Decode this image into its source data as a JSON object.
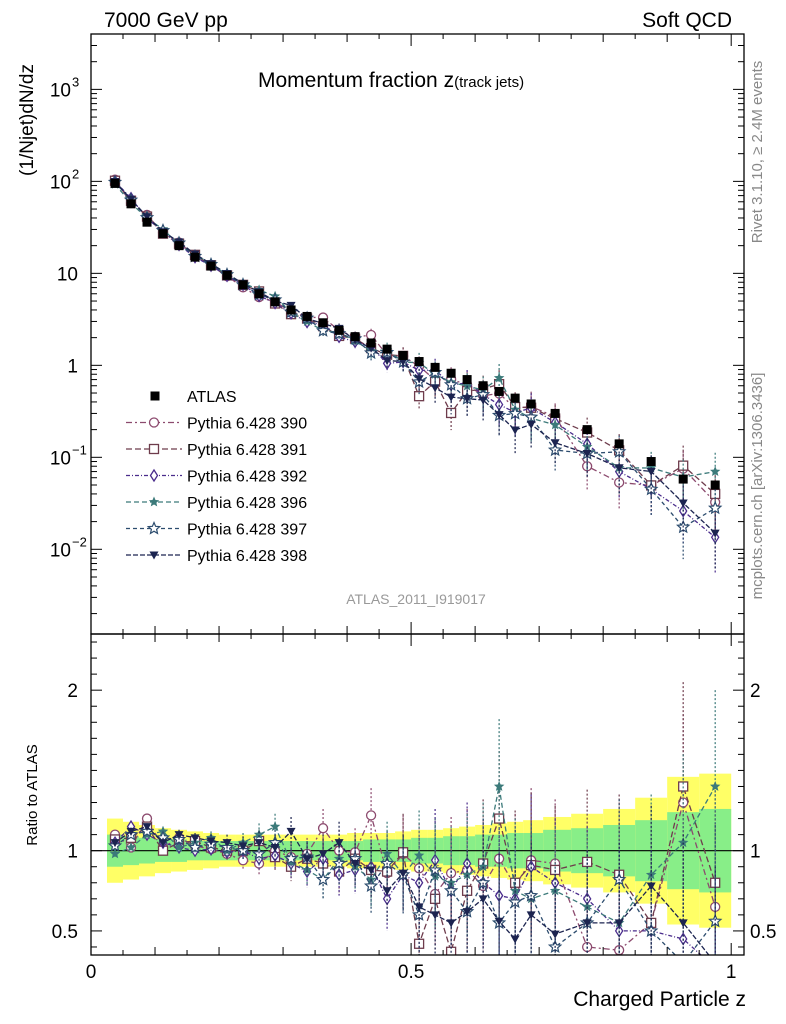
{
  "header": {
    "left": "7000 GeV pp",
    "right": "Soft QCD"
  },
  "side_labels": {
    "rivet": "Rivet 3.1.10, ≥ 2.4M events",
    "source": "mcplots.cern.ch [arXiv:1306.3436]"
  },
  "chart_data": [
    {
      "type": "scatter",
      "role": "main",
      "title": "Momentum fraction z",
      "title_sub": "(track jets)",
      "ylabel": "(1/Njet)dN/dz",
      "yscale": "log",
      "ylim": [
        0.0012,
        4000
      ],
      "xlim": [
        0,
        1.02
      ],
      "yticks": [
        {
          "v": 0.01,
          "base": "10",
          "exp": "−2"
        },
        {
          "v": 0.1,
          "base": "10",
          "exp": "−1"
        },
        {
          "v": 1,
          "base": "1",
          "exp": ""
        },
        {
          "v": 10,
          "base": "10",
          "exp": ""
        },
        {
          "v": 100,
          "base": "10",
          "exp": "2"
        },
        {
          "v": 1000,
          "base": "10",
          "exp": "3"
        }
      ],
      "watermark": "ATLAS_2011_I919017",
      "legend_position": "lower-left",
      "x": [
        0.0375,
        0.0625,
        0.0875,
        0.1125,
        0.1375,
        0.1625,
        0.1875,
        0.2125,
        0.2375,
        0.2625,
        0.2875,
        0.3125,
        0.3375,
        0.3625,
        0.3875,
        0.4125,
        0.4375,
        0.4625,
        0.4875,
        0.5125,
        0.5375,
        0.5625,
        0.5875,
        0.6125,
        0.6375,
        0.6625,
        0.6875,
        0.725,
        0.775,
        0.825,
        0.875,
        0.925,
        0.975
      ],
      "data": {
        "name": "ATLAS",
        "values": [
          95,
          57,
          36,
          27,
          20,
          15,
          12,
          9.5,
          7.5,
          6.0,
          4.9,
          4.0,
          3.4,
          2.9,
          2.4,
          2.05,
          1.75,
          1.5,
          1.28,
          1.1,
          0.95,
          0.82,
          0.7,
          0.6,
          0.52,
          0.44,
          0.38,
          0.3,
          0.2,
          0.14,
          0.09,
          0.058,
          0.05
        ],
        "band_inner": [
          0.1,
          0.09,
          0.08,
          0.07,
          0.07,
          0.06,
          0.06,
          0.06,
          0.06,
          0.06,
          0.06,
          0.06,
          0.06,
          0.06,
          0.06,
          0.06,
          0.07,
          0.07,
          0.07,
          0.08,
          0.08,
          0.09,
          0.09,
          0.1,
          0.1,
          0.11,
          0.11,
          0.13,
          0.14,
          0.16,
          0.19,
          0.24,
          0.26
        ],
        "band_outer": [
          0.2,
          0.18,
          0.16,
          0.14,
          0.13,
          0.12,
          0.11,
          0.1,
          0.1,
          0.1,
          0.1,
          0.1,
          0.1,
          0.1,
          0.1,
          0.11,
          0.11,
          0.11,
          0.12,
          0.13,
          0.13,
          0.14,
          0.15,
          0.16,
          0.17,
          0.18,
          0.19,
          0.21,
          0.23,
          0.26,
          0.33,
          0.46,
          0.48
        ]
      },
      "series": [
        {
          "name": "Pythia 6.428 390",
          "color": "#8c4a6e",
          "marker": "circle-open",
          "ratio": [
            1.1,
            1.02,
            1.2,
            1.02,
            1.08,
            1.03,
            1.01,
            0.98,
            0.94,
            0.92,
            1.0,
            0.96,
            0.98,
            1.14,
            1.0,
            0.99,
            1.22,
            0.86,
            0.98,
            0.89,
            0.73,
            0.86,
            0.88,
            0.78,
            0.95,
            0.78,
            0.94,
            0.92,
            0.4,
            0.38,
            0.55,
            1.3,
            0.65
          ],
          "err": [
            0.02,
            0.02,
            0.02,
            0.03,
            0.03,
            0.03,
            0.04,
            0.05,
            0.06,
            0.07,
            0.08,
            0.09,
            0.1,
            0.12,
            0.13,
            0.15,
            0.17,
            0.2,
            0.24,
            0.28,
            0.32,
            0.35,
            0.38,
            0.4,
            0.42,
            0.45,
            0.45,
            0.4,
            0.45,
            0.5,
            0.5,
            0.55,
            0.6
          ]
        },
        {
          "name": "Pythia 6.428 391",
          "color": "#6e3c4c",
          "marker": "square-open",
          "ratio": [
            1.07,
            1.08,
            1.15,
            1.0,
            1.05,
            1.06,
            1.02,
            1.0,
            1.0,
            1.06,
            0.96,
            0.9,
            0.95,
            0.92,
            0.87,
            0.95,
            0.88,
            0.87,
            0.99,
            0.42,
            0.7,
            0.37,
            0.75,
            0.92,
            1.2,
            0.8,
            0.91,
            0.88,
            0.93,
            0.85,
            0.55,
            1.4,
            0.8
          ],
          "err": [
            0.02,
            0.02,
            0.02,
            0.03,
            0.03,
            0.03,
            0.04,
            0.05,
            0.06,
            0.07,
            0.08,
            0.09,
            0.1,
            0.12,
            0.13,
            0.15,
            0.17,
            0.2,
            0.24,
            0.28,
            0.32,
            0.35,
            0.38,
            0.4,
            0.42,
            0.45,
            0.45,
            0.4,
            0.45,
            0.5,
            0.5,
            0.65,
            0.6
          ]
        },
        {
          "name": "Pythia 6.428 392",
          "color": "#4a2c8c",
          "marker": "diamond-open",
          "ratio": [
            1.05,
            1.15,
            1.1,
            1.05,
            1.02,
            1.0,
            1.01,
            0.99,
            1.0,
            0.95,
            0.97,
            0.92,
            0.87,
            0.95,
            0.85,
            0.88,
            0.9,
            0.7,
            0.85,
            0.8,
            0.94,
            0.75,
            0.92,
            0.8,
            0.72,
            0.7,
            0.9,
            0.8,
            0.7,
            0.5,
            0.5,
            0.45,
            0.27
          ],
          "err": [
            0.02,
            0.02,
            0.02,
            0.03,
            0.03,
            0.03,
            0.04,
            0.05,
            0.06,
            0.07,
            0.08,
            0.09,
            0.1,
            0.12,
            0.13,
            0.15,
            0.17,
            0.2,
            0.24,
            0.28,
            0.32,
            0.35,
            0.38,
            0.4,
            0.42,
            0.45,
            0.45,
            0.4,
            0.45,
            0.5,
            0.5,
            0.55,
            0.6
          ]
        },
        {
          "name": "Pythia 6.428 396",
          "color": "#3c7a7a",
          "marker": "star",
          "ratio": [
            0.98,
            1.02,
            1.1,
            1.12,
            1.02,
            1.05,
            1.08,
            1.0,
            1.05,
            1.1,
            1.15,
            0.93,
            0.88,
            0.82,
            0.95,
            0.9,
            0.82,
            0.98,
            0.85,
            0.97,
            0.84,
            0.8,
            0.85,
            0.9,
            1.4,
            0.75,
            0.7,
            0.75,
            0.65,
            0.55,
            0.85,
            1.05,
            1.4
          ],
          "err": [
            0.02,
            0.02,
            0.02,
            0.03,
            0.03,
            0.03,
            0.04,
            0.05,
            0.06,
            0.07,
            0.08,
            0.09,
            0.1,
            0.12,
            0.13,
            0.15,
            0.17,
            0.2,
            0.24,
            0.28,
            0.32,
            0.35,
            0.38,
            0.4,
            0.42,
            0.45,
            0.45,
            0.4,
            0.45,
            0.5,
            0.5,
            0.55,
            0.6
          ]
        },
        {
          "name": "Pythia 6.428 397",
          "color": "#2c4c6e",
          "marker": "star-open",
          "ratio": [
            1.03,
            1.1,
            1.12,
            1.08,
            1.07,
            1.02,
            1.04,
            1.02,
            1.0,
            0.98,
            1.05,
            0.95,
            0.96,
            0.82,
            0.92,
            0.95,
            0.78,
            0.92,
            0.85,
            0.6,
            0.88,
            0.75,
            0.62,
            0.8,
            0.55,
            0.68,
            0.72,
            0.4,
            0.55,
            0.82,
            0.5,
            0.3,
            0.56
          ],
          "err": [
            0.02,
            0.02,
            0.02,
            0.03,
            0.03,
            0.03,
            0.04,
            0.05,
            0.06,
            0.07,
            0.08,
            0.09,
            0.1,
            0.12,
            0.13,
            0.15,
            0.17,
            0.2,
            0.24,
            0.28,
            0.32,
            0.35,
            0.38,
            0.4,
            0.42,
            0.45,
            0.45,
            0.4,
            0.45,
            0.5,
            0.5,
            0.55,
            0.6
          ]
        },
        {
          "name": "Pythia 6.428 398",
          "color": "#1c2450",
          "marker": "triangle-down",
          "ratio": [
            1.05,
            1.12,
            1.15,
            1.05,
            1.1,
            1.08,
            1.06,
            1.05,
            1.03,
            1.05,
            1.02,
            1.12,
            0.95,
            0.98,
            1.05,
            0.92,
            0.88,
            0.75,
            0.86,
            0.65,
            0.6,
            0.55,
            0.62,
            0.7,
            0.56,
            0.45,
            0.6,
            0.48,
            0.55,
            0.55,
            0.78,
            0.55,
            0.3
          ],
          "err": [
            0.02,
            0.02,
            0.02,
            0.03,
            0.03,
            0.03,
            0.04,
            0.05,
            0.06,
            0.07,
            0.08,
            0.09,
            0.1,
            0.12,
            0.13,
            0.15,
            0.17,
            0.2,
            0.24,
            0.28,
            0.32,
            0.35,
            0.38,
            0.4,
            0.42,
            0.45,
            0.45,
            0.4,
            0.45,
            0.5,
            0.5,
            0.55,
            0.6
          ]
        }
      ]
    },
    {
      "type": "scatter",
      "role": "ratio",
      "ylabel": "Ratio to ATLAS",
      "xlabel": "Charged Particle z",
      "ylim": [
        0.35,
        2.35
      ],
      "xlim": [
        0,
        1.02
      ],
      "yticks": [
        "0.5",
        "1",
        "2"
      ],
      "xticks": [
        "0",
        "0.5",
        "1"
      ],
      "band_colors": {
        "inner": "#88ee88",
        "outer": "#ffff66"
      }
    }
  ]
}
